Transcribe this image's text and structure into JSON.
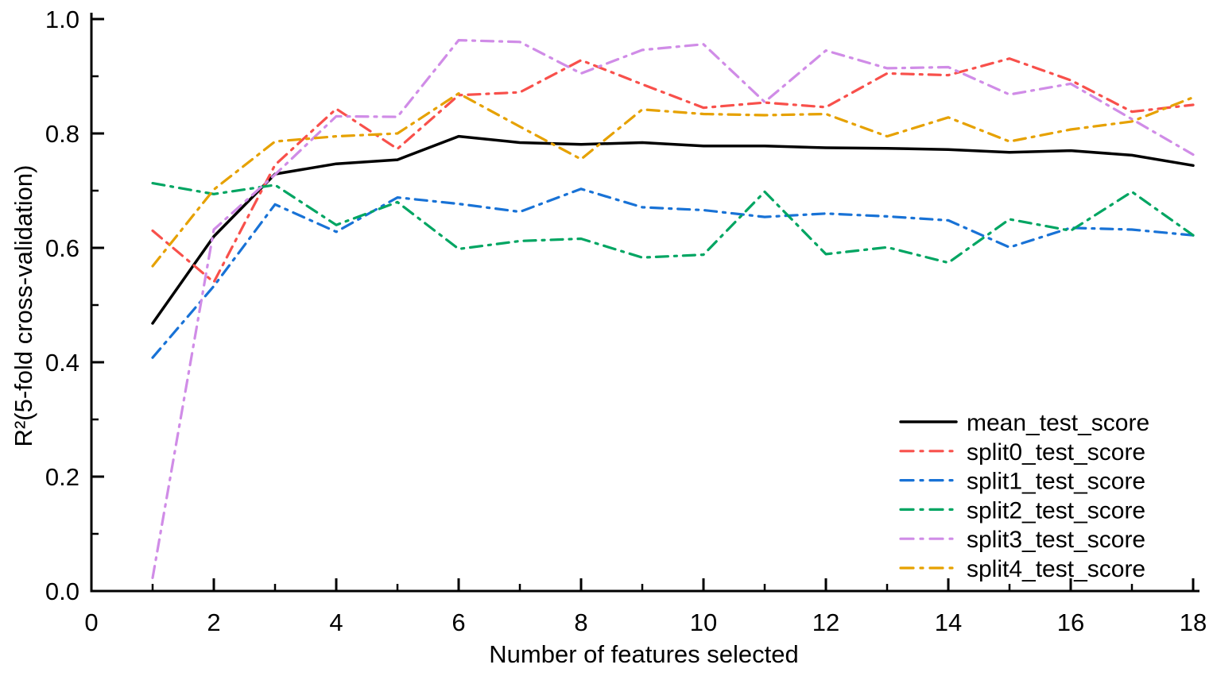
{
  "chart_data": {
    "type": "line",
    "title": "",
    "xlabel": "Number of features selected",
    "ylabel": "R²(5-fold cross-validation)",
    "xlim": [
      0,
      18
    ],
    "ylim": [
      0.0,
      1.0
    ],
    "grid": false,
    "legend_position": "lower right",
    "x_tick_labels": [
      "0",
      "2",
      "4",
      "6",
      "8",
      "10",
      "12",
      "14",
      "16",
      "18"
    ],
    "x_major_ticks": [
      0,
      2,
      4,
      6,
      8,
      10,
      12,
      14,
      16,
      18
    ],
    "x_minor_ticks": [
      1,
      3,
      5,
      7,
      9,
      11,
      13,
      15,
      17
    ],
    "y_tick_labels": [
      "0.0",
      "0.2",
      "0.4",
      "0.6",
      "0.8",
      "1.0"
    ],
    "y_major_ticks": [
      0.0,
      0.2,
      0.4,
      0.6,
      0.8,
      1.0
    ],
    "y_minor_ticks": [
      0.1,
      0.3,
      0.5,
      0.7,
      0.9
    ],
    "x": [
      1,
      2,
      3,
      4,
      5,
      6,
      7,
      8,
      9,
      10,
      11,
      12,
      13,
      14,
      15,
      16,
      17,
      18
    ],
    "series": [
      {
        "name": "mean_test_score",
        "color": "#000000",
        "style": "solid",
        "values": [
          0.468,
          0.62,
          0.729,
          0.747,
          0.754,
          0.795,
          0.784,
          0.781,
          0.784,
          0.778,
          0.778,
          0.775,
          0.774,
          0.772,
          0.767,
          0.77,
          0.762,
          0.744
        ]
      },
      {
        "name": "split0_test_score",
        "color": "#f8504b",
        "style": "dashdot",
        "values": [
          0.63,
          0.54,
          0.745,
          0.843,
          0.773,
          0.867,
          0.872,
          0.928,
          0.886,
          0.845,
          0.854,
          0.846,
          0.905,
          0.902,
          0.931,
          0.893,
          0.838,
          0.85
        ]
      },
      {
        "name": "split1_test_score",
        "color": "#1872d6",
        "style": "dashdot",
        "values": [
          0.408,
          0.533,
          0.676,
          0.628,
          0.688,
          0.677,
          0.663,
          0.703,
          0.671,
          0.666,
          0.654,
          0.66,
          0.655,
          0.648,
          0.601,
          0.635,
          0.632,
          0.622
        ]
      },
      {
        "name": "split2_test_score",
        "color": "#00a562",
        "style": "dashdot",
        "values": [
          0.713,
          0.694,
          0.71,
          0.64,
          0.68,
          0.598,
          0.612,
          0.616,
          0.583,
          0.588,
          0.698,
          0.589,
          0.601,
          0.574,
          0.65,
          0.63,
          0.698,
          0.622
        ]
      },
      {
        "name": "split3_test_score",
        "color": "#d08ce7",
        "style": "dashdot",
        "values": [
          0.023,
          0.632,
          0.728,
          0.83,
          0.829,
          0.963,
          0.96,
          0.905,
          0.946,
          0.956,
          0.855,
          0.945,
          0.914,
          0.916,
          0.868,
          0.887,
          0.825,
          0.763
        ]
      },
      {
        "name": "split4_test_score",
        "color": "#e6a100",
        "style": "dashdot",
        "values": [
          0.568,
          0.702,
          0.786,
          0.795,
          0.8,
          0.87,
          0.812,
          0.755,
          0.842,
          0.834,
          0.832,
          0.834,
          0.795,
          0.828,
          0.786,
          0.807,
          0.821,
          0.863
        ]
      }
    ],
    "legend_entries": [
      "mean_test_score",
      "split0_test_score",
      "split1_test_score",
      "split2_test_score",
      "split3_test_score",
      "split4_test_score"
    ]
  }
}
